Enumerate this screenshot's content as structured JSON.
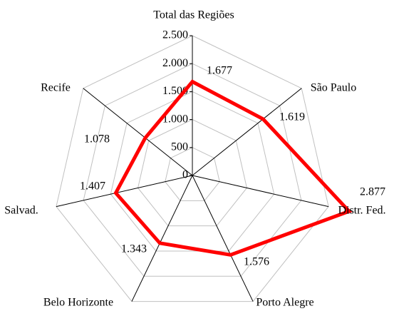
{
  "chart_data": {
    "type": "radar",
    "categories": [
      "Total das Regiões",
      "São Paulo",
      "Distr. Fed.",
      "Porto Alegre",
      "Belo Horizonte",
      "Salvad.",
      "Recife"
    ],
    "values": [
      1677,
      1619,
      2877,
      1576,
      1343,
      1407,
      1078
    ],
    "value_labels": [
      "1.677",
      "1.619",
      "2.877",
      "1.576",
      "1.343",
      "1.407",
      "1.078"
    ],
    "color": "#ff0000",
    "ylim": [
      0,
      2500
    ],
    "yticks": [
      0,
      500,
      {
        "value": 1000,
        "label": "1.000"
      },
      {
        "value": 1500,
        "label": "1.500"
      },
      {
        "value": 2000,
        "label": "2.000"
      },
      {
        "value": 2500,
        "label": "2.500"
      }
    ],
    "grid": true
  }
}
